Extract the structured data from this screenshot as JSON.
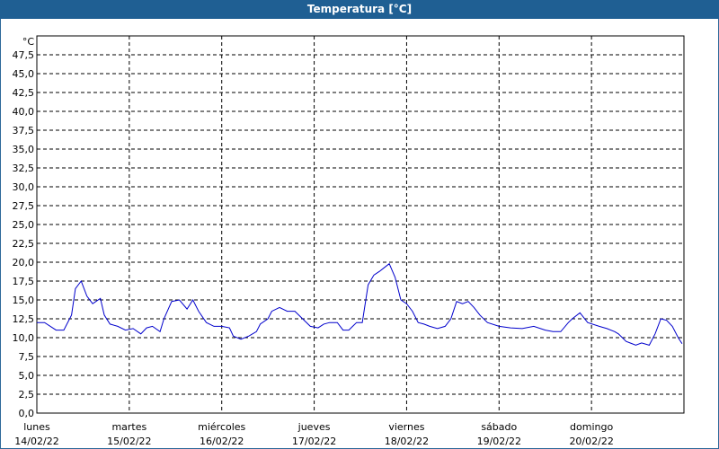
{
  "window": {
    "title": "Temperatura [°C]"
  },
  "chart_data": {
    "type": "line",
    "title": "Temperatura [°C]",
    "ylabel": "°C",
    "xlabel": "",
    "ylim": [
      0,
      50
    ],
    "yticks": [
      "0,0",
      "2,5",
      "5,0",
      "7,5",
      "10,0",
      "12,5",
      "15,0",
      "17,5",
      "20,0",
      "22,5",
      "25,0",
      "27,5",
      "30,0",
      "32,5",
      "35,0",
      "37,5",
      "40,0",
      "42,5",
      "45,0",
      "47,5"
    ],
    "xlim": [
      "2022-02-14 00:00",
      "2022-02-21 00:00"
    ],
    "xticks": [
      {
        "day": "lunes",
        "date": "14/02/22"
      },
      {
        "day": "martes",
        "date": "15/02/22"
      },
      {
        "day": "miércoles",
        "date": "16/02/22"
      },
      {
        "day": "jueves",
        "date": "17/02/22"
      },
      {
        "day": "viernes",
        "date": "18/02/22"
      },
      {
        "day": "sábado",
        "date": "19/02/22"
      },
      {
        "day": "domingo",
        "date": "20/02/22"
      }
    ],
    "grid": true,
    "line_color": "#0000cc",
    "series": [
      {
        "x": [
          "2022-02-14 00:00",
          "2022-02-14 02:00",
          "2022-02-14 05:00",
          "2022-02-14 07:00",
          "2022-02-14 09:00",
          "2022-02-14 10:00",
          "2022-02-14 11:30",
          "2022-02-14 13:00",
          "2022-02-14 14:30",
          "2022-02-14 16:30",
          "2022-02-14 17:30",
          "2022-02-14 19:00",
          "2022-02-14 21:00",
          "2022-02-14 23:00",
          "2022-02-15 01:00",
          "2022-02-15 03:00",
          "2022-02-15 04:30",
          "2022-02-15 06:00",
          "2022-02-15 08:00",
          "2022-02-15 09:00",
          "2022-02-15 11:00",
          "2022-02-15 13:00",
          "2022-02-15 15:00",
          "2022-02-15 16:30",
          "2022-02-15 18:00",
          "2022-02-15 20:00",
          "2022-02-15 22:00",
          "2022-02-16 00:00",
          "2022-02-16 02:00",
          "2022-02-16 03:00",
          "2022-02-16 05:00",
          "2022-02-16 07:00",
          "2022-02-16 09:00",
          "2022-02-16 10:00",
          "2022-02-16 12:00",
          "2022-02-16 13:00",
          "2022-02-16 15:00",
          "2022-02-16 17:00",
          "2022-02-16 19:00",
          "2022-02-16 21:00",
          "2022-02-16 23:00",
          "2022-02-17 01:00",
          "2022-02-17 02:30",
          "2022-02-17 04:00",
          "2022-02-17 06:00",
          "2022-02-17 07:30",
          "2022-02-17 09:00",
          "2022-02-17 10:00",
          "2022-02-17 11:00",
          "2022-02-17 12:30",
          "2022-02-17 14:00",
          "2022-02-17 15:30",
          "2022-02-17 17:00",
          "2022-02-17 18:00",
          "2022-02-17 19:30",
          "2022-02-17 21:00",
          "2022-02-17 22:30",
          "2022-02-18 00:00",
          "2022-02-18 01:30",
          "2022-02-18 03:00",
          "2022-02-18 04:30",
          "2022-02-18 06:00",
          "2022-02-18 08:00",
          "2022-02-18 10:00",
          "2022-02-18 11:30",
          "2022-02-18 13:00",
          "2022-02-18 14:30",
          "2022-02-18 16:00",
          "2022-02-18 17:30",
          "2022-02-18 19:00",
          "2022-02-18 21:00",
          "2022-02-19 00:00",
          "2022-02-19 03:00",
          "2022-02-19 06:00",
          "2022-02-19 09:00",
          "2022-02-19 12:00",
          "2022-02-19 14:00",
          "2022-02-19 16:00",
          "2022-02-19 18:00",
          "2022-02-19 19:00",
          "2022-02-19 21:00",
          "2022-02-19 23:00",
          "2022-02-20 02:00",
          "2022-02-20 04:00",
          "2022-02-20 06:00",
          "2022-02-20 07:00",
          "2022-02-20 08:00",
          "2022-02-20 09:00",
          "2022-02-20 10:00",
          "2022-02-20 11:30",
          "2022-02-20 13:00",
          "2022-02-20 15:00",
          "2022-02-20 16:30",
          "2022-02-20 18:00",
          "2022-02-20 19:30",
          "2022-02-20 21:00",
          "2022-02-20 22:30",
          "2022-02-20 23:30"
        ],
        "y": [
          12.0,
          12.0,
          11.0,
          11.0,
          13.0,
          16.5,
          17.5,
          15.5,
          14.5,
          15.2,
          13.0,
          11.8,
          11.5,
          11.0,
          11.2,
          10.5,
          11.3,
          11.5,
          10.8,
          12.5,
          14.8,
          15.0,
          13.8,
          15.0,
          13.5,
          12.0,
          11.5,
          11.5,
          11.3,
          10.2,
          9.8,
          10.2,
          10.8,
          11.8,
          12.5,
          13.5,
          14.0,
          13.5,
          13.5,
          12.5,
          11.5,
          11.3,
          11.8,
          12.0,
          12.0,
          11.0,
          11.0,
          11.5,
          12.0,
          12.0,
          17.0,
          18.3,
          18.8,
          19.2,
          19.8,
          18.0,
          15.0,
          14.5,
          13.5,
          12.0,
          11.8,
          11.5,
          11.2,
          11.5,
          12.5,
          14.8,
          14.5,
          14.8,
          14.0,
          13.0,
          12.0,
          11.5,
          11.3,
          11.2,
          11.5,
          11.0,
          10.8,
          10.8,
          12.0,
          12.5,
          13.3,
          12.0,
          11.5,
          11.2,
          10.8,
          10.5,
          10.0,
          9.5,
          9.3,
          9.0,
          9.3,
          9.0,
          10.5,
          12.5,
          12.3,
          11.5,
          10.0,
          9.2
        ]
      }
    ]
  }
}
